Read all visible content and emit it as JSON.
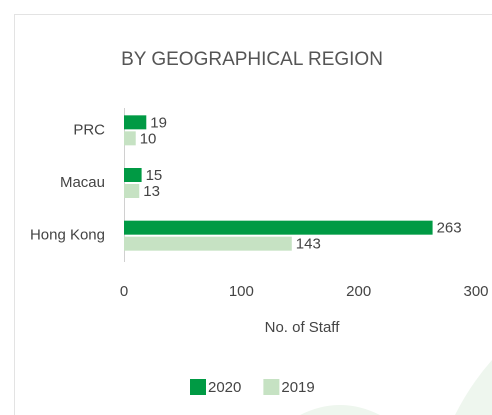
{
  "chart_data": {
    "type": "hbar",
    "title": "BY GEOGRAPHICAL REGION",
    "categories": [
      "PRC",
      "Macau",
      "Hong Kong"
    ],
    "series": [
      {
        "name": "2020",
        "color": "#009a44",
        "values": [
          19,
          15,
          263
        ]
      },
      {
        "name": "2019",
        "color": "#c6e2c3",
        "values": [
          10,
          13,
          143
        ]
      }
    ],
    "xlim": [
      0,
      300
    ],
    "xticks": [
      0,
      100,
      200,
      300
    ],
    "x_label": "No. of Staff",
    "data_labels": true,
    "legend": "bottom"
  }
}
